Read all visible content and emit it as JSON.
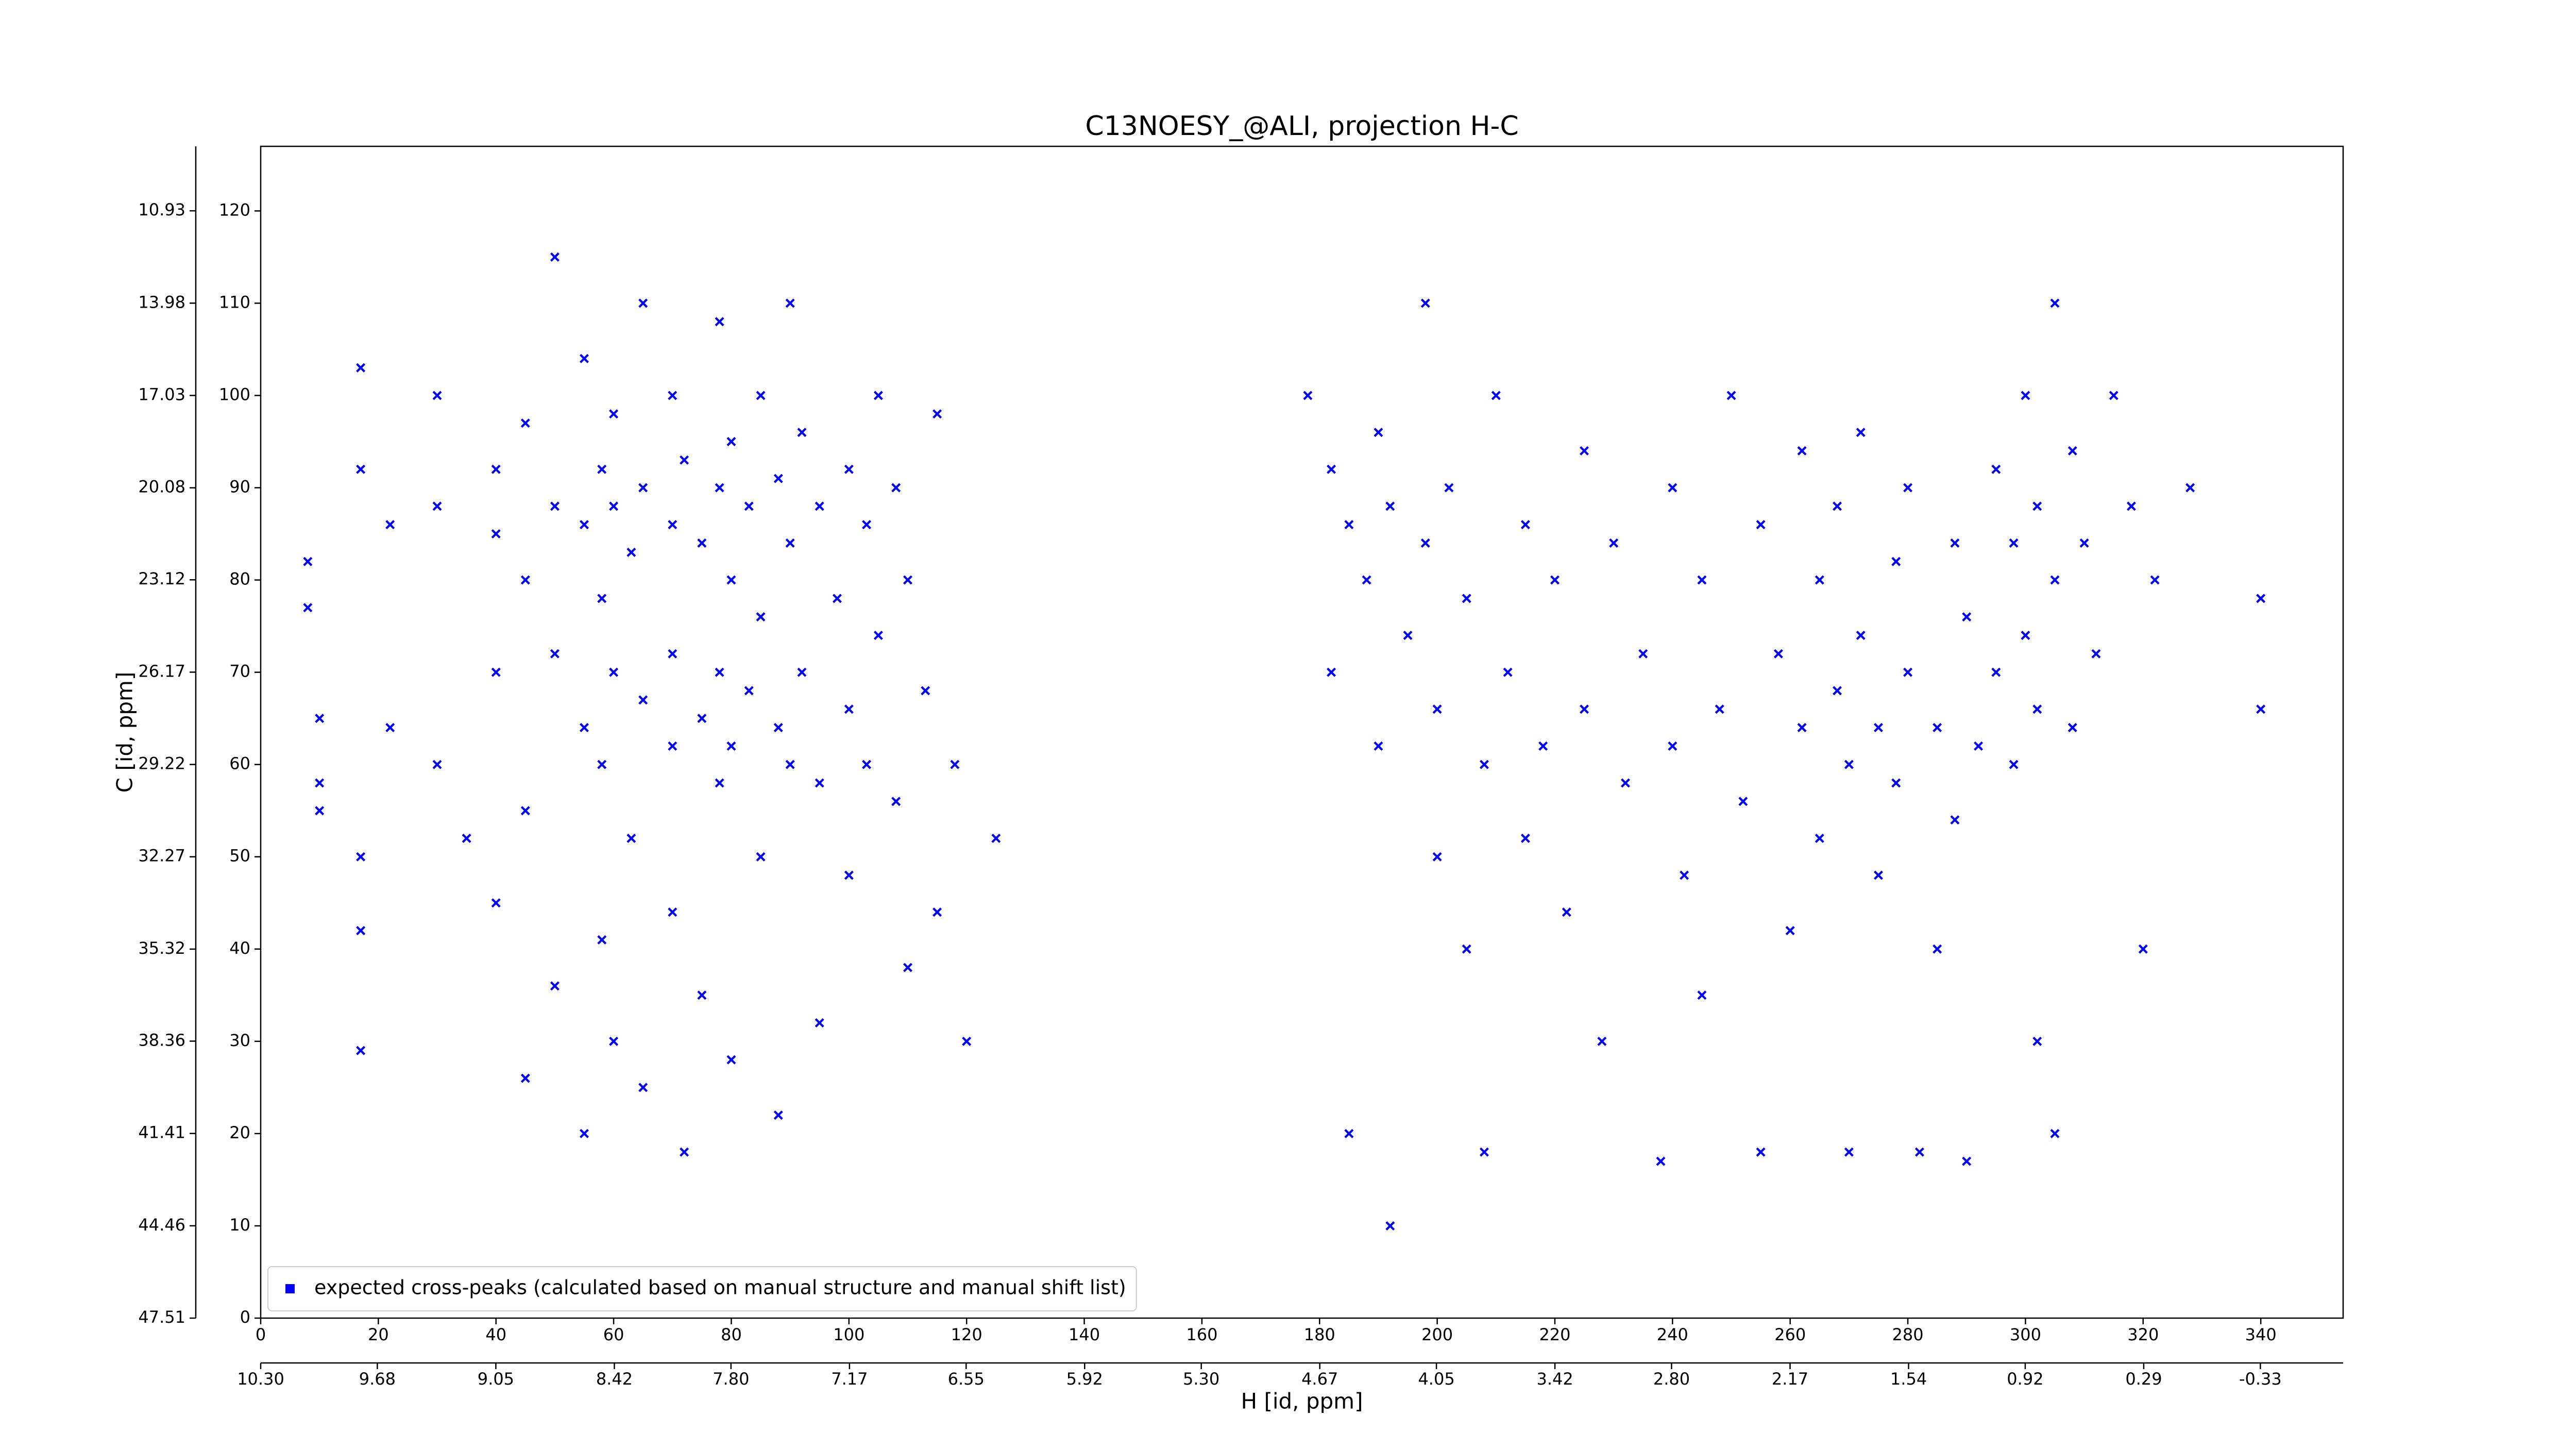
{
  "chart_data": {
    "type": "scatter",
    "title": "C13NOESY_@ALI, projection H-C",
    "xlabel": "H [id, ppm]",
    "ylabel": "C [id, ppm]",
    "xlim": [
      0,
      354
    ],
    "ylim": [
      0,
      127
    ],
    "xticks": [
      0,
      20,
      40,
      60,
      80,
      100,
      120,
      140,
      160,
      180,
      200,
      220,
      240,
      260,
      280,
      300,
      320,
      340
    ],
    "yticks": [
      0,
      10,
      20,
      30,
      40,
      50,
      60,
      70,
      80,
      90,
      100,
      110,
      120
    ],
    "secondary_x": {
      "lim": [
        10.3,
        -0.77
      ],
      "ticks": [
        {
          "value": 10.3,
          "label": "10.30"
        },
        9.68,
        9.05,
        8.42,
        {
          "value": 7.8,
          "label": "7.80"
        },
        7.17,
        6.55,
        5.92,
        {
          "value": 5.3,
          "label": "5.30"
        },
        4.67,
        4.05,
        3.42,
        {
          "value": 2.8,
          "label": "2.80"
        },
        2.17,
        1.54,
        0.92,
        0.29,
        -0.33
      ]
    },
    "secondary_y": {
      "lim": [
        47.51,
        8.8
      ],
      "ticks": [
        47.51,
        44.46,
        41.41,
        38.36,
        35.32,
        32.27,
        29.22,
        26.17,
        23.12,
        20.08,
        17.03,
        13.98,
        10.93
      ]
    },
    "legend": "lower left",
    "x": [
      8,
      8,
      10,
      10,
      10,
      17,
      17,
      17,
      17,
      17,
      22,
      22,
      30,
      30,
      30,
      35,
      40,
      40,
      40,
      40,
      45,
      45,
      45,
      45,
      50,
      50,
      50,
      50,
      55,
      55,
      55,
      55,
      58,
      58,
      58,
      58,
      60,
      60,
      60,
      60,
      63,
      63,
      65,
      65,
      65,
      65,
      70,
      70,
      70,
      70,
      70,
      72,
      72,
      75,
      75,
      75,
      78,
      78,
      78,
      78,
      80,
      80,
      80,
      80,
      83,
      83,
      85,
      85,
      85,
      88,
      88,
      88,
      90,
      90,
      90,
      92,
      92,
      95,
      95,
      95,
      98,
      100,
      100,
      100,
      103,
      103,
      105,
      105,
      108,
      108,
      110,
      110,
      113,
      115,
      115,
      118,
      120,
      125,
      178,
      182,
      182,
      185,
      185,
      188,
      190,
      190,
      192,
      192,
      195,
      198,
      198,
      200,
      200,
      202,
      205,
      205,
      208,
      208,
      210,
      212,
      215,
      215,
      218,
      220,
      222,
      225,
      225,
      228,
      230,
      232,
      235,
      238,
      240,
      240,
      242,
      245,
      245,
      248,
      250,
      252,
      255,
      255,
      258,
      260,
      262,
      262,
      265,
      265,
      268,
      268,
      270,
      270,
      272,
      272,
      275,
      275,
      278,
      278,
      280,
      280,
      282,
      285,
      285,
      288,
      288,
      290,
      290,
      292,
      295,
      295,
      298,
      298,
      300,
      300,
      302,
      302,
      302,
      305,
      305,
      305,
      308,
      308,
      310,
      312,
      315,
      318,
      320,
      322,
      328,
      340,
      340
    ],
    "series": [
      {
        "name": "expected cross-peaks (calculated based on manual structure and manual shift list)",
        "color": "#0000ff",
        "values": [
          82,
          77,
          65,
          58,
          55,
          103,
          92,
          50,
          42,
          29,
          86,
          64,
          100,
          88,
          60,
          52,
          92,
          85,
          70,
          45,
          97,
          80,
          55,
          26,
          115,
          88,
          72,
          36,
          104,
          86,
          64,
          20,
          92,
          78,
          60,
          41,
          98,
          88,
          70,
          30,
          83,
          52,
          110,
          90,
          67,
          25,
          100,
          86,
          72,
          62,
          44,
          93,
          18,
          84,
          65,
          35,
          108,
          90,
          70,
          58,
          95,
          80,
          62,
          28,
          88,
          68,
          100,
          76,
          50,
          91,
          64,
          22,
          110,
          84,
          60,
          96,
          70,
          88,
          58,
          32,
          78,
          92,
          66,
          48,
          86,
          60,
          100,
          74,
          90,
          56,
          80,
          38,
          68,
          98,
          44,
          60,
          30,
          52,
          100,
          92,
          70,
          86,
          20,
          80,
          96,
          62,
          88,
          10,
          74,
          110,
          84,
          66,
          50,
          90,
          78,
          40,
          60,
          18,
          100,
          70,
          86,
          52,
          62,
          80,
          44,
          94,
          66,
          30,
          84,
          58,
          72,
          17,
          90,
          62,
          48,
          80,
          35,
          66,
          100,
          56,
          86,
          18,
          72,
          42,
          94,
          64,
          80,
          52,
          88,
          68,
          60,
          18,
          96,
          74,
          64,
          48,
          82,
          58,
          90,
          70,
          18,
          64,
          40,
          84,
          54,
          76,
          17,
          62,
          92,
          70,
          84,
          60,
          100,
          74,
          88,
          66,
          30,
          110,
          80,
          20,
          94,
          64,
          84,
          72,
          100,
          88,
          40,
          80,
          90,
          78,
          66
        ]
      }
    ]
  }
}
